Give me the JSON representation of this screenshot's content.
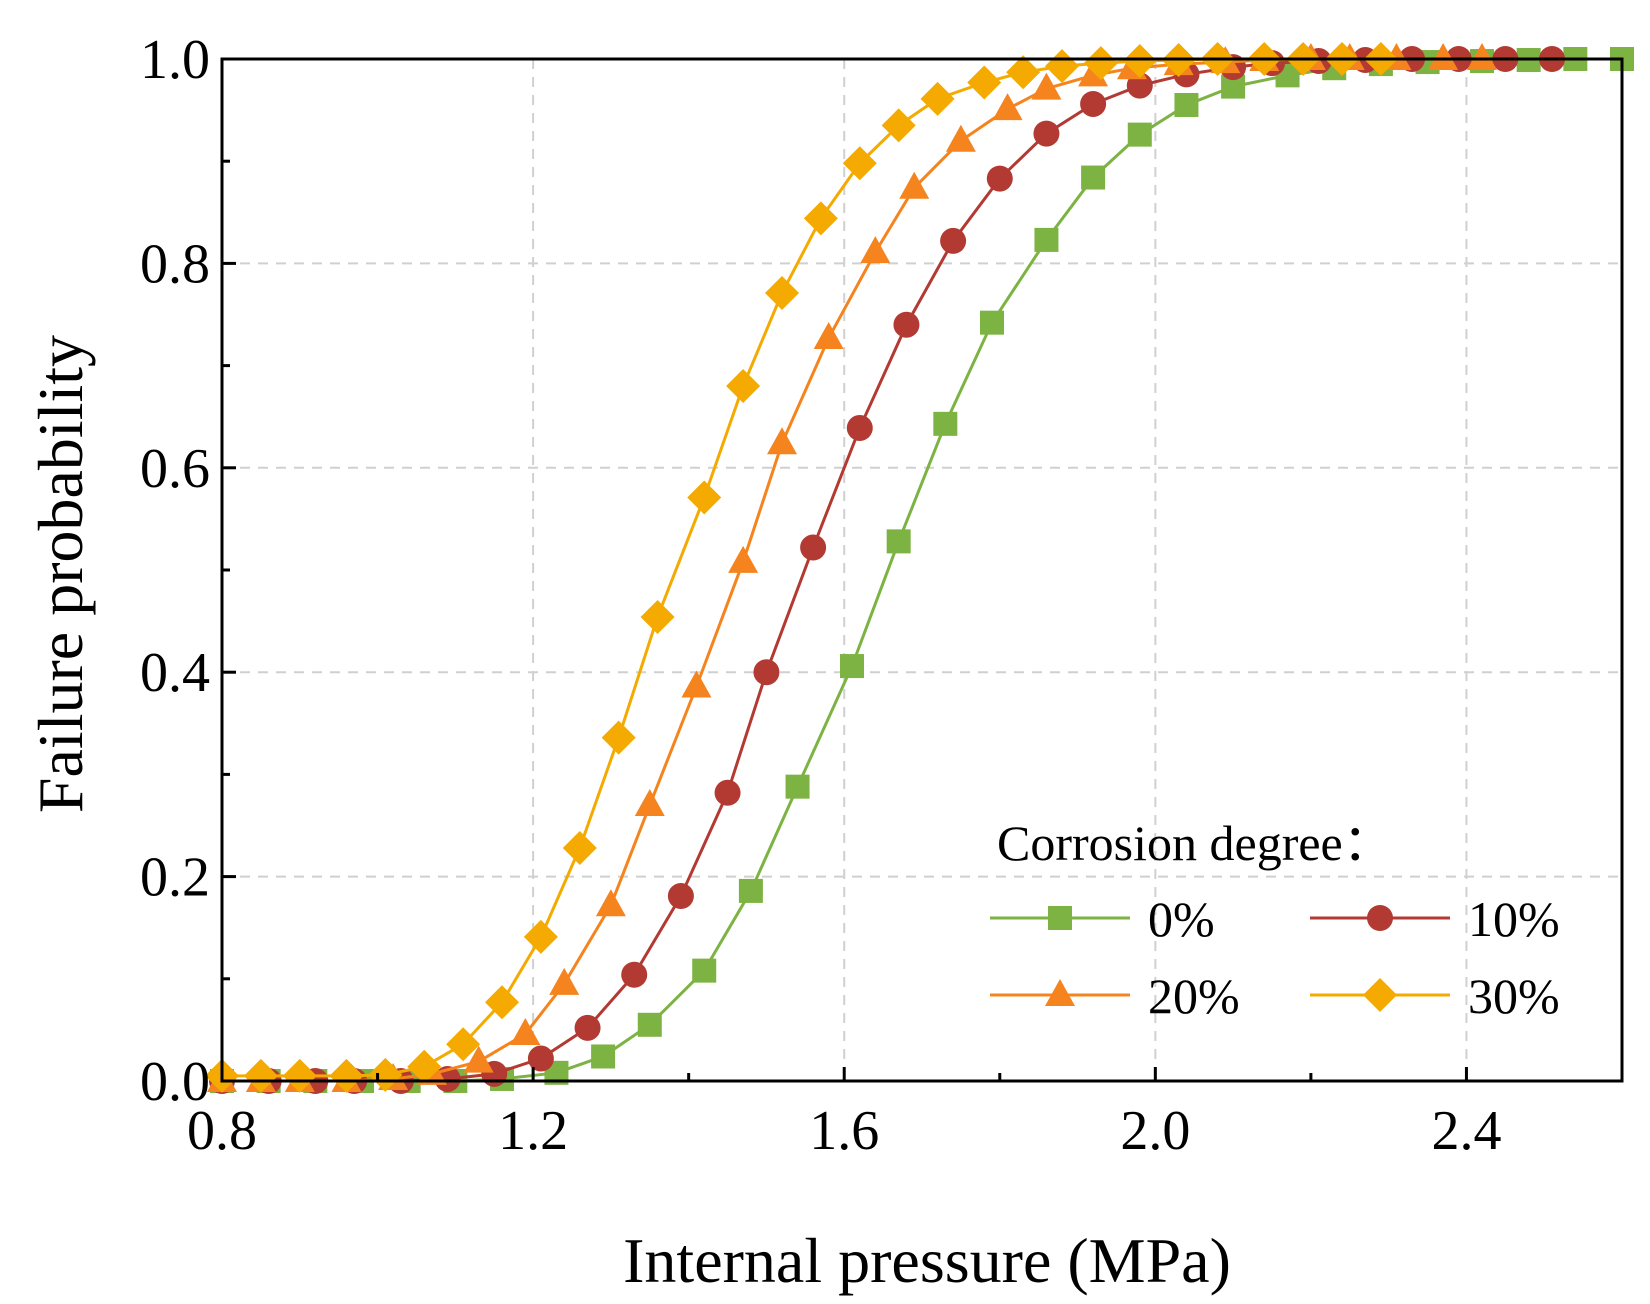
{
  "chart_data": {
    "type": "line",
    "title": "",
    "xlabel": "Internal pressure (MPa)",
    "ylabel": "Failure probability",
    "xlim": [
      0.8,
      2.6
    ],
    "ylim": [
      0.0,
      1.0
    ],
    "xticks": [
      0.8,
      1.2,
      1.6,
      2.0,
      2.4
    ],
    "xtick_labels": [
      "0.8",
      "1.2",
      "1.6",
      "2.0",
      "2.4"
    ],
    "yticks": [
      0.0,
      0.2,
      0.4,
      0.6,
      0.8,
      1.0
    ],
    "ytick_labels": [
      "0.0",
      "0.2",
      "0.4",
      "0.6",
      "0.8",
      "1.0"
    ],
    "grid": true,
    "legend_title": "Corrosion degree：",
    "legend_position": "bottom-right",
    "series": [
      {
        "name": "0%",
        "marker": "square",
        "color": "#7cb342",
        "x": [
          0.8,
          0.86,
          0.92,
          0.98,
          1.04,
          1.1,
          1.16,
          1.23,
          1.29,
          1.35,
          1.42,
          1.48,
          1.54,
          1.61,
          1.67,
          1.73,
          1.79,
          1.86,
          1.92,
          1.98,
          2.04,
          2.1,
          2.17,
          2.23,
          2.29,
          2.35,
          2.42,
          2.48,
          2.54,
          2.6
        ],
        "values": [
          0.0,
          0.0,
          0.0,
          0.0,
          0.0,
          0.0,
          0.002,
          0.008,
          0.024,
          0.055,
          0.108,
          0.186,
          0.288,
          0.406,
          0.528,
          0.643,
          0.742,
          0.823,
          0.884,
          0.926,
          0.955,
          0.973,
          0.984,
          0.991,
          0.995,
          0.997,
          0.998,
          0.999,
          1.0,
          1.0
        ]
      },
      {
        "name": "10%",
        "marker": "circle",
        "color": "#b33a32",
        "x": [
          0.8,
          0.86,
          0.92,
          0.97,
          1.03,
          1.09,
          1.15,
          1.21,
          1.27,
          1.33,
          1.39,
          1.45,
          1.5,
          1.56,
          1.62,
          1.68,
          1.74,
          1.8,
          1.86,
          1.92,
          1.98,
          2.04,
          2.1,
          2.15,
          2.21,
          2.27,
          2.33,
          2.39,
          2.45,
          2.51
        ],
        "values": [
          0.0,
          0.0,
          0.0,
          0.0,
          0.0,
          0.002,
          0.007,
          0.022,
          0.052,
          0.104,
          0.181,
          0.282,
          0.4,
          0.522,
          0.639,
          0.74,
          0.822,
          0.883,
          0.927,
          0.956,
          0.974,
          0.985,
          0.992,
          0.996,
          0.998,
          0.999,
          1.0,
          1.0,
          1.0,
          1.0
        ]
      },
      {
        "name": "20%",
        "marker": "triangle",
        "color": "#f5841f",
        "x": [
          0.8,
          0.85,
          0.9,
          0.96,
          1.02,
          1.07,
          1.13,
          1.19,
          1.24,
          1.3,
          1.35,
          1.41,
          1.47,
          1.52,
          1.58,
          1.64,
          1.69,
          1.75,
          1.81,
          1.86,
          1.92,
          1.97,
          2.03,
          2.09,
          2.14,
          2.2,
          2.25,
          2.31,
          2.37,
          2.42
        ],
        "values": [
          0.0,
          0.0,
          0.0,
          0.0,
          0.002,
          0.007,
          0.019,
          0.046,
          0.095,
          0.172,
          0.27,
          0.386,
          0.508,
          0.624,
          0.727,
          0.811,
          0.874,
          0.92,
          0.951,
          0.971,
          0.984,
          0.991,
          0.995,
          0.997,
          0.999,
          1.0,
          1.0,
          1.0,
          1.0,
          1.0
        ]
      },
      {
        "name": "30%",
        "marker": "diamond",
        "color": "#f4aa00",
        "x": [
          0.8,
          0.85,
          0.9,
          0.96,
          1.01,
          1.06,
          1.11,
          1.16,
          1.21,
          1.26,
          1.31,
          1.36,
          1.42,
          1.47,
          1.52,
          1.57,
          1.62,
          1.67,
          1.72,
          1.78,
          1.83,
          1.88,
          1.93,
          1.98,
          2.03,
          2.08,
          2.14,
          2.19,
          2.24,
          2.29
        ],
        "values": [
          0.005,
          0.005,
          0.005,
          0.005,
          0.006,
          0.014,
          0.036,
          0.077,
          0.141,
          0.228,
          0.336,
          0.454,
          0.571,
          0.68,
          0.771,
          0.844,
          0.898,
          0.935,
          0.961,
          0.977,
          0.987,
          0.993,
          0.996,
          0.998,
          0.999,
          1.0,
          1.0,
          1.0,
          1.0,
          1.0
        ]
      }
    ]
  }
}
